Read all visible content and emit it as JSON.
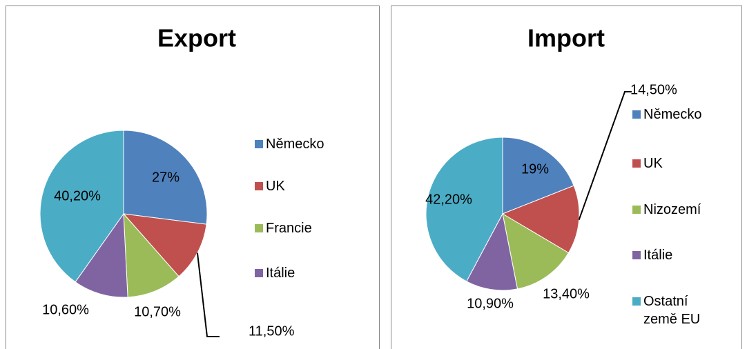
{
  "chart_data": [
    {
      "type": "pie",
      "title": "Export",
      "categories": [
        "Německo",
        "UK",
        "Francie",
        "Itálie",
        null
      ],
      "values": [
        27,
        11.5,
        10.7,
        10.6,
        40.2
      ],
      "value_labels": [
        "27%",
        "11,50%",
        "10,70%",
        "10,60%",
        "40,20%"
      ],
      "colors": [
        "#4f81bd",
        "#c0504d",
        "#9bbb59",
        "#8064a2",
        "#4bacc6"
      ]
    },
    {
      "type": "pie",
      "title": "Import",
      "categories": [
        "Německo",
        "UK",
        "Nizozemí",
        "Itálie",
        "Ostatní země EU"
      ],
      "values": [
        19,
        14.5,
        13.4,
        10.9,
        42.2
      ],
      "value_labels": [
        "19%",
        "14,50%",
        "13,40%",
        "10,90%",
        "42,20%"
      ],
      "colors": [
        "#4f81bd",
        "#c0504d",
        "#9bbb59",
        "#8064a2",
        "#4bacc6"
      ]
    }
  ]
}
